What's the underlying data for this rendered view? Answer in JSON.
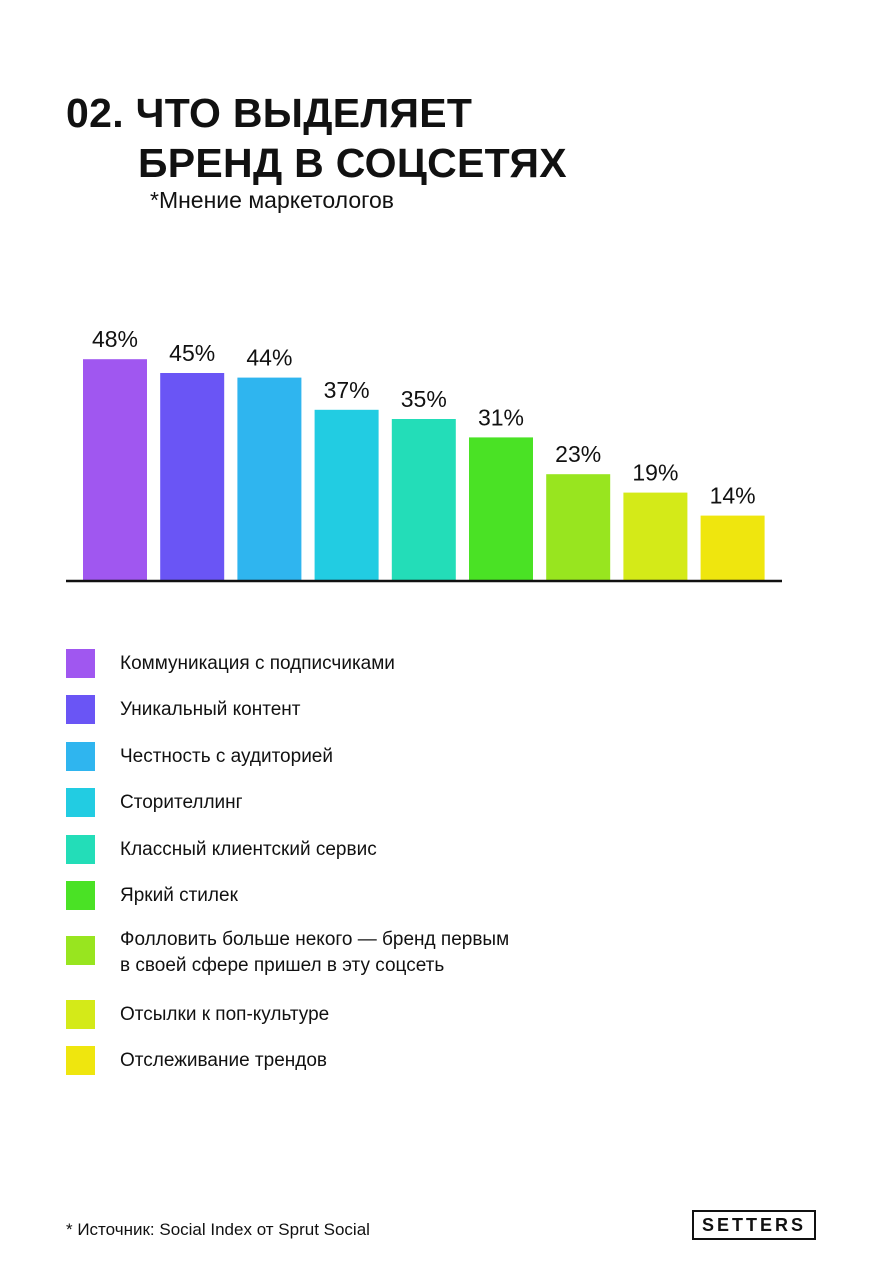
{
  "title": {
    "line1": "02. ЧТО ВЫДЕЛЯЕТ",
    "line2": "БРЕНД В СОЦСЕТЯХ"
  },
  "subtitle": "*Мнение маркетологов",
  "chart_data": {
    "type": "bar",
    "categories": [
      "Коммуникация с подписчиками",
      "Уникальный контент",
      "Честность с аудиторией",
      "Сторителлинг",
      " Классный клиентский сервис",
      " Яркий стилек",
      "Фолловить больше некого — бренд первым\nв своей сфере пришел в эту соцсеть",
      "Отсылки к поп-культуре",
      "Отслеживание трендов"
    ],
    "values": [
      48,
      45,
      44,
      37,
      35,
      31,
      23,
      19,
      14
    ],
    "value_labels": [
      "48%",
      "45%",
      "44%",
      "37%",
      "35%",
      "31%",
      "23%",
      "19%",
      "14%"
    ],
    "colors": [
      "#A057F0",
      "#6A55F5",
      "#2FB5EF",
      "#22CCE2",
      "#23DDB8",
      "#4AE225",
      "#98E51F",
      "#D4EA18",
      "#EFE60E"
    ],
    "ylim": [
      0,
      50
    ],
    "grid": false,
    "legend_position": "bottom"
  },
  "footer": {
    "source": "* Источник: Social Index от Sprut Social",
    "logo": "SETTERS"
  }
}
